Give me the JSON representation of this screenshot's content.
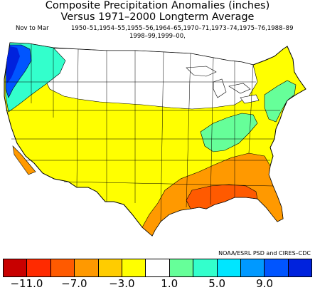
{
  "title_line1": "Composite Precipitation Anomalies (inches)",
  "title_line2": "Versus 1971–2000 Longterm Average",
  "season": "Nov to Mar",
  "years_line1": "1950–51,1954–55,1955–56,1964–65,1970–71,1973–74,1975–76,1988–89",
  "years_line2": "1998–99,1999–00,",
  "credit": "NOAA/ESRL PSD and CIRES–CDC",
  "colorbar": {
    "colors": [
      "#c80000",
      "#ff2a00",
      "#ff5a00",
      "#ff9900",
      "#ffcc00",
      "#ffff00",
      "#ffffff",
      "#66ff99",
      "#33ffcc",
      "#00e6ff",
      "#0099ff",
      "#0055ff",
      "#0022dd"
    ],
    "labels": [
      "−11.0",
      "−7.0",
      "−3.0",
      "1.0",
      "5.0",
      "9.0"
    ],
    "label_boundary_index": [
      1,
      3,
      5,
      7,
      9,
      11
    ]
  },
  "map_regions": [
    {
      "name": "northwest-coast-wet",
      "color": "#0055ff"
    },
    {
      "name": "northwest-interior-wet",
      "color": "#33ffcc"
    },
    {
      "name": "northern-plains-neutral",
      "color": "#ffffff"
    },
    {
      "name": "southwest-dry",
      "color": "#ffff00"
    },
    {
      "name": "southern-california-dry",
      "color": "#ff9900"
    },
    {
      "name": "gulf-coast-very-dry",
      "color": "#ff5a00"
    },
    {
      "name": "southeast-dry",
      "color": "#ff9900"
    },
    {
      "name": "ohio-valley-wet",
      "color": "#66ff99"
    },
    {
      "name": "northeast-wet",
      "color": "#66ff99"
    }
  ]
}
